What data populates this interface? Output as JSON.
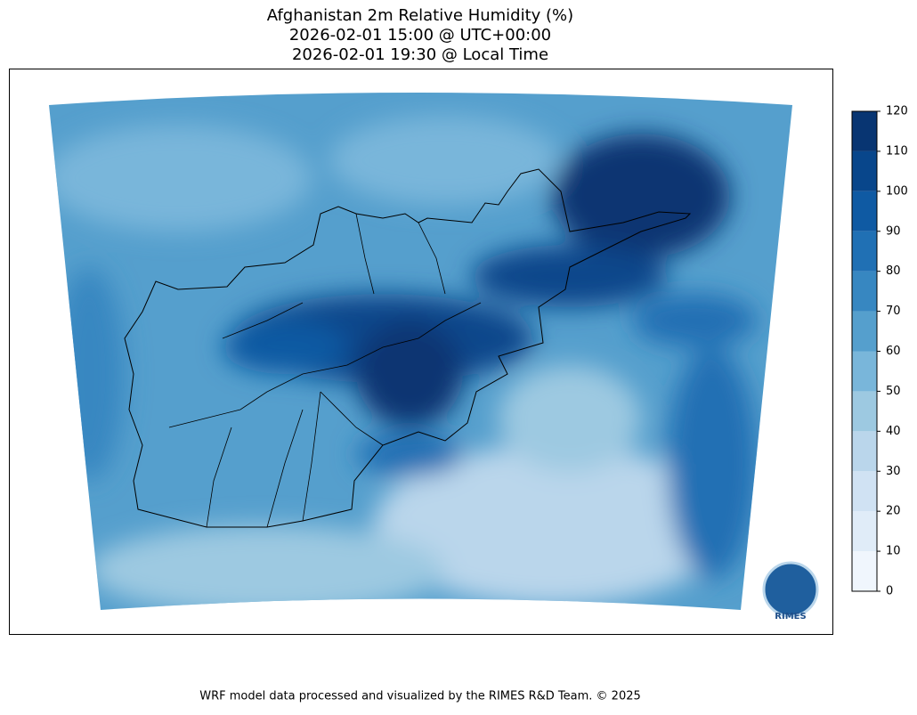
{
  "title": [
    "Afghanistan 2m Relative Humidity (%)",
    "2026-02-01 15:00 @ UTC+00:00",
    "2026-02-01 19:30 @ Local Time"
  ],
  "colorbar": {
    "lim": [
      0,
      120
    ],
    "ticks": [
      0,
      10,
      20,
      30,
      40,
      50,
      60,
      70,
      80,
      90,
      100,
      110,
      120
    ],
    "colors": [
      "#f0f6fd",
      "#e0ecf8",
      "#d0e2f3",
      "#bad6eb",
      "#9dc9e1",
      "#79b6da",
      "#559fcd",
      "#3787c1",
      "#2070b4",
      "#0f5aa3",
      "#08468b",
      "#083572"
    ]
  },
  "logo": "RIMES",
  "footer": "WRF model data processed and visualized by the RIMES R&D Team. © 2025"
}
